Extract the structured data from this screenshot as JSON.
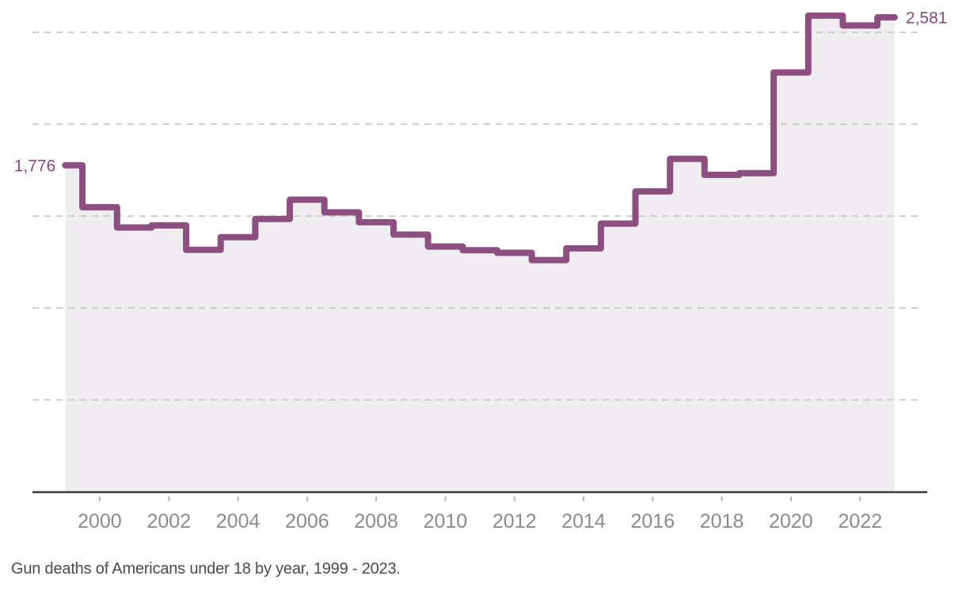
{
  "caption": {
    "text": "Gun deaths of Americans under 18 by year, 1999 - 2023."
  },
  "chart_data": {
    "type": "line",
    "line_shape": "step-center",
    "title": "",
    "xlabel": "",
    "ylabel": "",
    "x": [
      1999,
      2000,
      2001,
      2002,
      2003,
      2004,
      2005,
      2006,
      2007,
      2008,
      2009,
      2010,
      2011,
      2012,
      2013,
      2014,
      2015,
      2016,
      2017,
      2018,
      2019,
      2020,
      2021,
      2022,
      2023
    ],
    "values": [
      1776,
      1548,
      1438,
      1449,
      1316,
      1385,
      1484,
      1589,
      1520,
      1466,
      1399,
      1334,
      1314,
      1300,
      1260,
      1324,
      1459,
      1634,
      1811,
      1724,
      1733,
      2281,
      2590,
      2537,
      2581
    ],
    "series_name": "Gun deaths of Americans under 18",
    "xlim": [
      1999,
      2023
    ],
    "ylim": [
      0,
      2700
    ],
    "x_tick_labels": [
      "2000",
      "2002",
      "2004",
      "2006",
      "2008",
      "2010",
      "2012",
      "2014",
      "2016",
      "2018",
      "2020",
      "2022"
    ],
    "gridlines": {
      "values": [
        500,
        1000,
        1500,
        2000,
        2500
      ],
      "style": "dashed",
      "visible": true
    },
    "legend_position": "none",
    "area_fill": true,
    "annotations": [
      {
        "text": "1,776",
        "year": 1999,
        "value": 1776,
        "position": "start"
      },
      {
        "text": "2,581",
        "year": 2023,
        "value": 2581,
        "position": "end"
      }
    ],
    "colors": {
      "line": "#8D4F80",
      "area": "#EFEDEF",
      "gridline": "#C9C9C9",
      "axis": "#3A3A3A",
      "tick": "#B3B3B3",
      "tick_label": "#8B8B8B",
      "annotation": "#8A497B",
      "caption": "#4B4B4B",
      "background": "#FFFFFF"
    }
  }
}
